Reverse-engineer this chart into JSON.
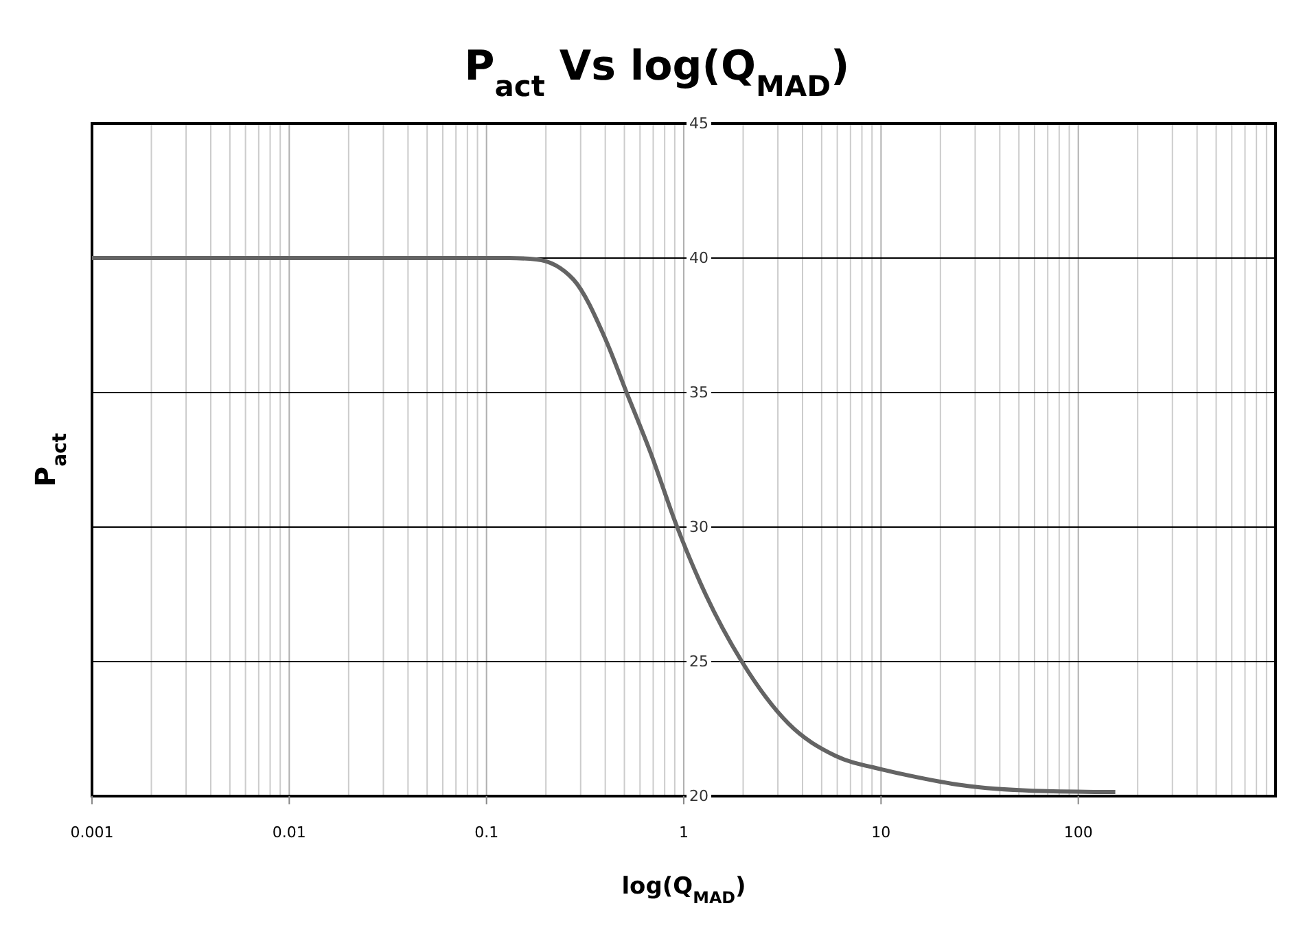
{
  "chart_data": {
    "type": "line",
    "title": "P$_{act}$ Vs log(Q$_{MAD}$)",
    "xlabel": "log(Q$_{MAD}$)",
    "ylabel": "P$_{act}$",
    "x": [
      0.001,
      0.01,
      0.08,
      0.13,
      0.179,
      0.276,
      0.4,
      0.51,
      0.68,
      0.92,
      1.29,
      1.97,
      3.39,
      5.87,
      10,
      13.8,
      26,
      58.6,
      154
    ],
    "series": [
      {
        "color": "#646464",
        "values": [
          40,
          40,
          40,
          40,
          39.95,
          39.2,
          37,
          35.05,
          32.75,
          30.05,
          27.5,
          25,
          22.7,
          21.5,
          21,
          20.77,
          20.4,
          20.2,
          20.15
        ]
      }
    ],
    "log": "x",
    "xlim": [
      0.001,
      1000
    ],
    "ylim": [
      20,
      45
    ],
    "xticks": [
      0.001,
      {
        "value": 0.002,
        "label": null
      },
      {
        "value": 0.003,
        "label": null
      },
      {
        "value": 0.004,
        "label": null
      },
      {
        "value": 0.005,
        "label": null
      },
      {
        "value": 0.006,
        "label": null
      },
      {
        "value": 0.007,
        "label": null
      },
      {
        "value": 0.008,
        "label": null
      },
      {
        "value": 0.009,
        "label": null
      },
      0.01,
      {
        "value": 0.02,
        "label": null
      },
      {
        "value": 0.03,
        "label": null
      },
      {
        "value": 0.04,
        "label": null
      },
      {
        "value": 0.05,
        "label": null
      },
      {
        "value": 0.06,
        "label": null
      },
      {
        "value": 0.07,
        "label": null
      },
      {
        "value": 0.08,
        "label": null
      },
      {
        "value": 0.09,
        "label": null
      },
      0.1,
      {
        "value": 0.2,
        "label": null
      },
      {
        "value": 0.3,
        "label": null
      },
      {
        "value": 0.4,
        "label": null
      },
      {
        "value": 0.5,
        "label": null
      },
      {
        "value": 0.6,
        "label": null
      },
      {
        "value": 0.7,
        "label": null
      },
      {
        "value": 0.8,
        "label": null
      },
      {
        "value": 0.9,
        "label": null
      },
      1,
      {
        "value": 2,
        "label": null
      },
      {
        "value": 3,
        "label": null
      },
      {
        "value": 4,
        "label": null
      },
      {
        "value": 5,
        "label": null
      },
      {
        "value": 6,
        "label": null
      },
      {
        "value": 7,
        "label": null
      },
      {
        "value": 8,
        "label": null
      },
      {
        "value": 9,
        "label": null
      },
      10,
      {
        "value": 20,
        "label": null
      },
      {
        "value": 30,
        "label": null
      },
      {
        "value": 40,
        "label": null
      },
      {
        "value": 50,
        "label": null
      },
      {
        "value": 60,
        "label": null
      },
      {
        "value": 70,
        "label": null
      },
      {
        "value": 80,
        "label": null
      },
      {
        "value": 90,
        "label": null
      },
      100,
      {
        "value": 200,
        "label": null
      },
      {
        "value": 300,
        "label": null
      },
      {
        "value": 400,
        "label": null
      },
      {
        "value": 500,
        "label": null
      },
      {
        "value": 600,
        "label": null
      },
      {
        "value": 700,
        "label": null
      },
      {
        "value": 800,
        "label": null
      },
      {
        "value": 900,
        "label": null
      },
      {
        "value": 1000,
        "label": null
      }
    ],
    "yticks": [
      20,
      25,
      30,
      35,
      40,
      45
    ],
    "grid": true,
    "marker": "none",
    "line_style": "solid"
  }
}
